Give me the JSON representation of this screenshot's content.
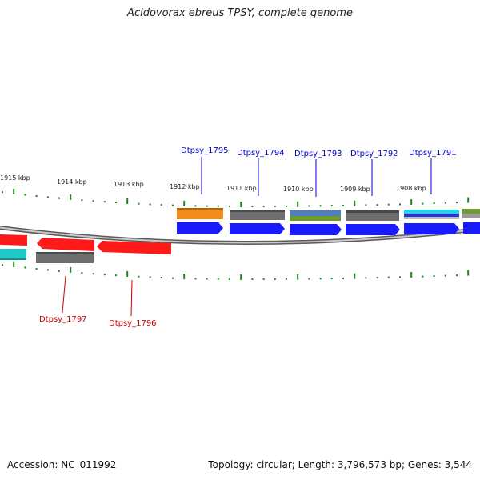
{
  "title": "Acidovorax ebreus TPSY, complete genome",
  "accession": "Accession: NC_011992",
  "summary": "Topology: circular; Length: 3,796,573 bp; Genes: 3,544",
  "ticks": [
    "1915 kbp",
    "1914 kbp",
    "1913 kbp",
    "1912 kbp",
    "1911 kbp",
    "1910 kbp",
    "1909 kbp",
    "1908 kbp"
  ],
  "genes_forward": [
    {
      "name": "Dtpsy_1795"
    },
    {
      "name": "Dtpsy_1794"
    },
    {
      "name": "Dtpsy_1793"
    },
    {
      "name": "Dtpsy_1792"
    },
    {
      "name": "Dtpsy_1791"
    }
  ],
  "genes_reverse": [
    {
      "name": "Dtpsy_1797"
    },
    {
      "name": "Dtpsy_1796"
    }
  ],
  "colors": {
    "forward": "#1a1aff",
    "reverse": "#ff1a1a",
    "forward_label": "#0000cc",
    "reverse_label": "#cc0000",
    "tick": "#1a8a1a",
    "cog_orange": "#f28c1c",
    "cog_gray": "#6e6e6e",
    "cog_blue": "#4f7fbf",
    "cog_green": "#6c9a2c",
    "cog_cyan": "#21d4e6",
    "cog_teal": "#1fc7c7",
    "backbone": "#9a9a9a"
  }
}
